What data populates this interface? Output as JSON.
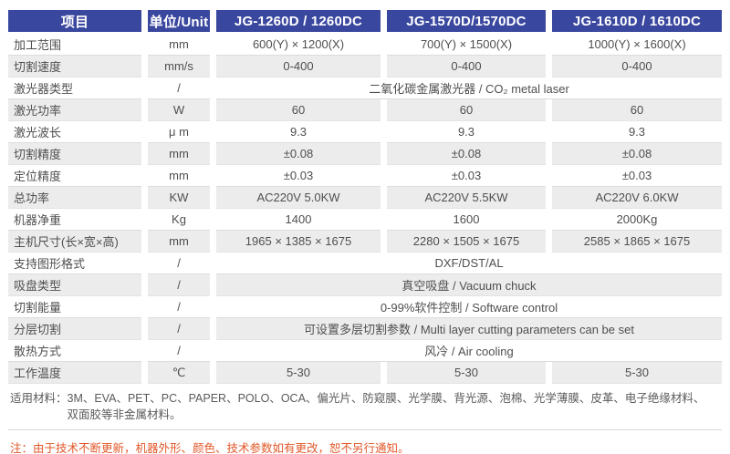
{
  "table": {
    "header": {
      "item": "项目",
      "unit": "单位/Unit",
      "models": [
        "JG-1260D / 1260DC",
        "JG-1570D/1570DC",
        "JG-1610D / 1610DC"
      ]
    },
    "rows": [
      {
        "label": "加工范围",
        "unit": "mm",
        "span": false,
        "values": [
          "600(Y) × 1200(X)",
          "700(Y) × 1500(X)",
          "1000(Y) × 1600(X)"
        ]
      },
      {
        "label": "切割速度",
        "unit": "mm/s",
        "span": false,
        "values": [
          "0-400",
          "0-400",
          "0-400"
        ]
      },
      {
        "label": "激光器类型",
        "unit": "/",
        "span": true,
        "values": [
          "二氧化碳金属激光器 / CO₂ metal laser"
        ]
      },
      {
        "label": "激光功率",
        "unit": "W",
        "span": false,
        "values": [
          "60",
          "60",
          "60"
        ]
      },
      {
        "label": "激光波长",
        "unit": "μ m",
        "span": false,
        "values": [
          "9.3",
          "9.3",
          "9.3"
        ]
      },
      {
        "label": "切割精度",
        "unit": "mm",
        "span": false,
        "values": [
          "±0.08",
          "±0.08",
          "±0.08"
        ]
      },
      {
        "label": "定位精度",
        "unit": "mm",
        "span": false,
        "values": [
          "±0.03",
          "±0.03",
          "±0.03"
        ]
      },
      {
        "label": "总功率",
        "unit": "KW",
        "span": false,
        "values": [
          "AC220V 5.0KW",
          "AC220V 5.5KW",
          "AC220V 6.0KW"
        ]
      },
      {
        "label": "机器净重",
        "unit": "Kg",
        "span": false,
        "values": [
          "1400",
          "1600",
          "2000Kg"
        ]
      },
      {
        "label": "主机尺寸(长×宽×高)",
        "unit": "mm",
        "span": false,
        "values": [
          "1965 × 1385 × 1675",
          "2280 × 1505 × 1675",
          "2585 × 1865 × 1675"
        ]
      },
      {
        "label": "支持图形格式",
        "unit": "/",
        "span": true,
        "values": [
          "DXF/DST/AL"
        ]
      },
      {
        "label": "吸盘类型",
        "unit": "/",
        "span": true,
        "values": [
          "真空吸盘 / Vacuum chuck"
        ]
      },
      {
        "label": "切割能量",
        "unit": "/",
        "span": true,
        "values": [
          "0-99%软件控制 / Software control"
        ]
      },
      {
        "label": "分层切割",
        "unit": "/",
        "span": true,
        "values": [
          "可设置多层切割参数 / Multi layer cutting parameters can be set"
        ]
      },
      {
        "label": "散热方式",
        "unit": "/",
        "span": true,
        "values": [
          "风冷 / Air cooling"
        ]
      },
      {
        "label": "工作温度",
        "unit": "℃",
        "span": false,
        "values": [
          "5-30",
          "5-30",
          "5-30"
        ]
      }
    ]
  },
  "materials": {
    "label": "适用材料：",
    "line1": "3M、EVA、PET、PC、PAPER、POLO、OCA、偏光片、防窥膜、光学膜、背光源、泡棉、光学薄膜、皮革、电子绝缘材料、",
    "line2": "双面胶等非金属材料。"
  },
  "note": "注：由于技术不断更新，机器外形、颜色、技术参数如有更改，恕不另行通知。",
  "colors": {
    "header_bg": "#3A479E",
    "row_alt_bg": "#ECECEC",
    "text": "#4F4F4F",
    "note": "#E2582A",
    "divider": "#D9D9D9"
  }
}
